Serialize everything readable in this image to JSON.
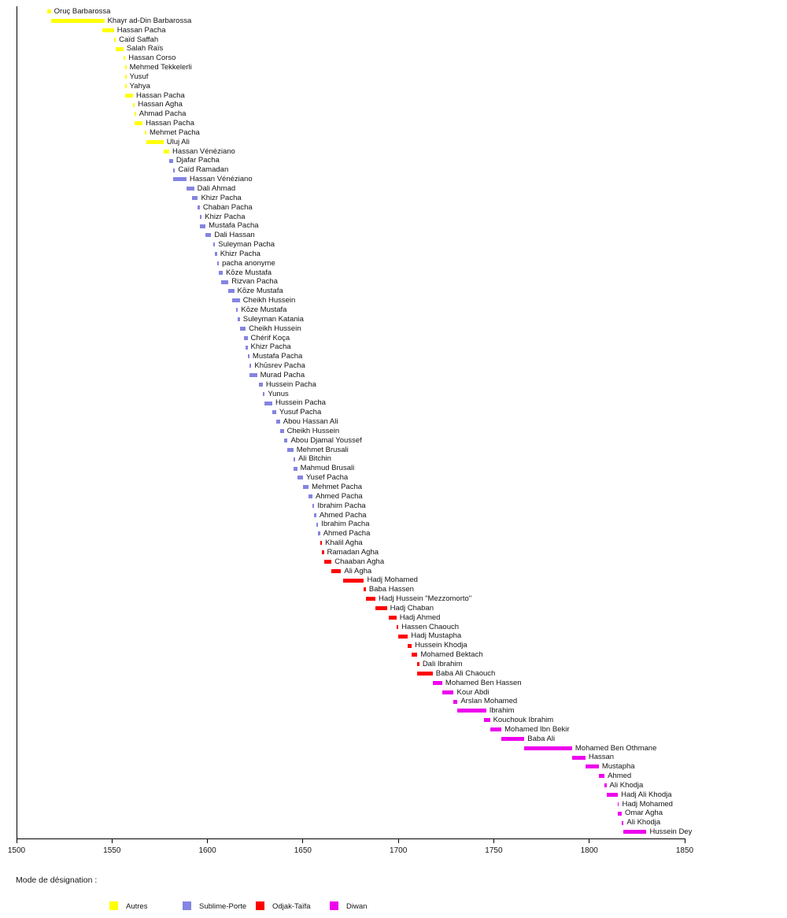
{
  "chart_data": {
    "type": "bar",
    "variant": "horizontal-timeline",
    "title": "",
    "xlabel": "",
    "ylabel": "",
    "grid": false,
    "x_axis": {
      "min": 1500,
      "max": 1850,
      "tick_interval": 50,
      "ticks": [
        1500,
        1550,
        1600,
        1650,
        1700,
        1750,
        1800,
        1850
      ]
    },
    "legend": {
      "title": "Mode de désignation :",
      "position": "bottom",
      "entries": [
        {
          "label": "Autres",
          "color": "#ffff00"
        },
        {
          "label": "Sublime-Porte",
          "color": "#8484e2"
        },
        {
          "label": "Odjak-Taïfa",
          "color": "#ff0000"
        },
        {
          "label": "Diwan",
          "color": "#ee00ee"
        }
      ]
    },
    "bars": [
      {
        "name": "Oruç Barbarossa",
        "start": 1516,
        "end": 1518,
        "group": "Autres"
      },
      {
        "name": "Khayr ad-Din Barbarossa",
        "start": 1518,
        "end": 1546,
        "group": "Autres"
      },
      {
        "name": "Hassan Pacha",
        "start": 1545,
        "end": 1551,
        "group": "Autres"
      },
      {
        "name": "Caïd Saffah",
        "start": 1551,
        "end": 1552,
        "group": "Autres"
      },
      {
        "name": "Salah Raïs",
        "start": 1552,
        "end": 1556,
        "group": "Autres"
      },
      {
        "name": "Hassan Corso",
        "start": 1556,
        "end": 1557,
        "group": "Autres"
      },
      {
        "name": "Mehmed Tekkelerli",
        "start": 1557,
        "end": 1557,
        "group": "Autres"
      },
      {
        "name": "Yusuf",
        "start": 1557,
        "end": 1557,
        "group": "Autres"
      },
      {
        "name": "Yahya",
        "start": 1557,
        "end": 1557,
        "group": "Autres"
      },
      {
        "name": "Hassan Pacha",
        "start": 1557,
        "end": 1561,
        "group": "Autres"
      },
      {
        "name": "Hassan Agha",
        "start": 1561,
        "end": 1562,
        "group": "Autres"
      },
      {
        "name": "Ahmad Pacha",
        "start": 1562,
        "end": 1562,
        "group": "Autres"
      },
      {
        "name": "Hassan Pacha",
        "start": 1562,
        "end": 1566,
        "group": "Autres"
      },
      {
        "name": "Mehmet Pacha",
        "start": 1567,
        "end": 1568,
        "group": "Autres"
      },
      {
        "name": "Uluj Ali",
        "start": 1568,
        "end": 1577,
        "group": "Autres"
      },
      {
        "name": "Hassan Vénéziano",
        "start": 1577,
        "end": 1580,
        "group": "Autres"
      },
      {
        "name": "Djafar Pacha",
        "start": 1580,
        "end": 1582,
        "group": "Sublime-Porte"
      },
      {
        "name": "Caïd Ramadan",
        "start": 1582,
        "end": 1583,
        "group": "Sublime-Porte"
      },
      {
        "name": "Hassan Vénéziano",
        "start": 1582,
        "end": 1589,
        "group": "Sublime-Porte"
      },
      {
        "name": "Dali Ahmad",
        "start": 1589,
        "end": 1593,
        "group": "Sublime-Porte"
      },
      {
        "name": "Khizr Pacha",
        "start": 1592,
        "end": 1595,
        "group": "Sublime-Porte"
      },
      {
        "name": "Chaban Pacha",
        "start": 1595,
        "end": 1596,
        "group": "Sublime-Porte"
      },
      {
        "name": "Khizr Pacha",
        "start": 1596,
        "end": 1597,
        "group": "Sublime-Porte"
      },
      {
        "name": "Mustafa Pacha",
        "start": 1596,
        "end": 1599,
        "group": "Sublime-Porte"
      },
      {
        "name": "Dali Hassan",
        "start": 1599,
        "end": 1602,
        "group": "Sublime-Porte"
      },
      {
        "name": "Suleyman Pacha",
        "start": 1603,
        "end": 1604,
        "group": "Sublime-Porte"
      },
      {
        "name": "Khizr Pacha",
        "start": 1604,
        "end": 1605,
        "group": "Sublime-Porte"
      },
      {
        "name": "pacha anonyme",
        "start": 1605,
        "end": 1606,
        "group": "Sublime-Porte"
      },
      {
        "name": "Kōze Mustafa",
        "start": 1606,
        "end": 1608,
        "group": "Sublime-Porte"
      },
      {
        "name": "Rizvan Pacha",
        "start": 1607,
        "end": 1611,
        "group": "Sublime-Porte"
      },
      {
        "name": "Kōze Mustafa",
        "start": 1611,
        "end": 1614,
        "group": "Sublime-Porte"
      },
      {
        "name": "Cheikh Hussein",
        "start": 1613,
        "end": 1617,
        "group": "Sublime-Porte"
      },
      {
        "name": "Kōze Mustafa",
        "start": 1615,
        "end": 1616,
        "group": "Sublime-Porte"
      },
      {
        "name": "Suleyman Katania",
        "start": 1616,
        "end": 1617,
        "group": "Sublime-Porte"
      },
      {
        "name": "Cheikh Hussein",
        "start": 1617,
        "end": 1620,
        "group": "Sublime-Porte"
      },
      {
        "name": "Chérif Koça",
        "start": 1619,
        "end": 1621,
        "group": "Sublime-Porte"
      },
      {
        "name": "Khizr Pacha",
        "start": 1620,
        "end": 1621,
        "group": "Sublime-Porte"
      },
      {
        "name": "Mustafa Pacha",
        "start": 1621,
        "end": 1622,
        "group": "Sublime-Porte"
      },
      {
        "name": "Khūsrev Pacha",
        "start": 1622,
        "end": 1623,
        "group": "Sublime-Porte"
      },
      {
        "name": "Murad Pacha",
        "start": 1622,
        "end": 1626,
        "group": "Sublime-Porte"
      },
      {
        "name": "Hussein Pacha",
        "start": 1627,
        "end": 1629,
        "group": "Sublime-Porte"
      },
      {
        "name": "Yunus",
        "start": 1629,
        "end": 1630,
        "group": "Sublime-Porte"
      },
      {
        "name": "Hussein Pacha",
        "start": 1630,
        "end": 1634,
        "group": "Sublime-Porte"
      },
      {
        "name": "Yusuf Pacha",
        "start": 1634,
        "end": 1636,
        "group": "Sublime-Porte"
      },
      {
        "name": "Abou Hassan Ali",
        "start": 1636,
        "end": 1638,
        "group": "Sublime-Porte"
      },
      {
        "name": "Cheikh Hussein",
        "start": 1638,
        "end": 1640,
        "group": "Sublime-Porte"
      },
      {
        "name": "Abou Djamal Youssef",
        "start": 1640,
        "end": 1642,
        "group": "Sublime-Porte"
      },
      {
        "name": "Mehmet Brusali",
        "start": 1642,
        "end": 1645,
        "group": "Sublime-Porte"
      },
      {
        "name": "Ali Bitchin",
        "start": 1645,
        "end": 1646,
        "group": "Sublime-Porte"
      },
      {
        "name": "Mahmud Brusali",
        "start": 1645,
        "end": 1647,
        "group": "Sublime-Porte"
      },
      {
        "name": "Yusef Pacha",
        "start": 1647,
        "end": 1650,
        "group": "Sublime-Porte"
      },
      {
        "name": "Mehmet Pacha",
        "start": 1650,
        "end": 1653,
        "group": "Sublime-Porte"
      },
      {
        "name": "Ahmed Pacha",
        "start": 1653,
        "end": 1655,
        "group": "Sublime-Porte"
      },
      {
        "name": "Ibrahim Pacha",
        "start": 1655,
        "end": 1656,
        "group": "Sublime-Porte"
      },
      {
        "name": "Ahmed Pacha",
        "start": 1656,
        "end": 1657,
        "group": "Sublime-Porte"
      },
      {
        "name": "Ibrahim Pacha",
        "start": 1657,
        "end": 1658,
        "group": "Sublime-Porte"
      },
      {
        "name": "Ahmed Pacha",
        "start": 1658,
        "end": 1659,
        "group": "Sublime-Porte"
      },
      {
        "name": "Khalil Agha",
        "start": 1659,
        "end": 1660,
        "group": "Odjak-Taïfa"
      },
      {
        "name": "Ramadan Agha",
        "start": 1660,
        "end": 1661,
        "group": "Odjak-Taïfa"
      },
      {
        "name": "Chaaban Agha",
        "start": 1661,
        "end": 1665,
        "group": "Odjak-Taïfa"
      },
      {
        "name": "Ali Agha",
        "start": 1665,
        "end": 1670,
        "group": "Odjak-Taïfa"
      },
      {
        "name": "Hadj Mohamed",
        "start": 1671,
        "end": 1682,
        "group": "Odjak-Taïfa"
      },
      {
        "name": "Baba Hassen",
        "start": 1682,
        "end": 1683,
        "group": "Odjak-Taïfa"
      },
      {
        "name": "Hadj Hussein \"Mezzomorto\"",
        "start": 1683,
        "end": 1688,
        "group": "Odjak-Taïfa"
      },
      {
        "name": "Hadj Chaban",
        "start": 1688,
        "end": 1694,
        "group": "Odjak-Taïfa"
      },
      {
        "name": "Hadj Ahmed",
        "start": 1695,
        "end": 1699,
        "group": "Odjak-Taïfa"
      },
      {
        "name": "Hassen Chaouch",
        "start": 1699,
        "end": 1700,
        "group": "Odjak-Taïfa"
      },
      {
        "name": "Hadj Mustapha",
        "start": 1700,
        "end": 1705,
        "group": "Odjak-Taïfa"
      },
      {
        "name": "Hussein Khodja",
        "start": 1705,
        "end": 1707,
        "group": "Odjak-Taïfa"
      },
      {
        "name": "Mohamed Bektach",
        "start": 1707,
        "end": 1710,
        "group": "Odjak-Taïfa"
      },
      {
        "name": "Dali Ibrahim",
        "start": 1710,
        "end": 1711,
        "group": "Odjak-Taïfa"
      },
      {
        "name": "Baba Ali Chaouch",
        "start": 1710,
        "end": 1718,
        "group": "Odjak-Taïfa"
      },
      {
        "name": "Mohamed Ben Hassen",
        "start": 1718,
        "end": 1723,
        "group": "Diwan"
      },
      {
        "name": "Kour Abdi",
        "start": 1723,
        "end": 1729,
        "group": "Diwan"
      },
      {
        "name": "Arslan Mohamed",
        "start": 1729,
        "end": 1731,
        "group": "Diwan"
      },
      {
        "name": "Ibrahim",
        "start": 1731,
        "end": 1746,
        "group": "Diwan"
      },
      {
        "name": "Kouchouk Ibrahim",
        "start": 1745,
        "end": 1748,
        "group": "Diwan"
      },
      {
        "name": "Mohamed Ibn Bekir",
        "start": 1748,
        "end": 1754,
        "group": "Diwan"
      },
      {
        "name": "Baba Ali",
        "start": 1754,
        "end": 1766,
        "group": "Diwan"
      },
      {
        "name": "Mohamed Ben Othmane",
        "start": 1766,
        "end": 1791,
        "group": "Diwan"
      },
      {
        "name": "Hassan",
        "start": 1791,
        "end": 1798,
        "group": "Diwan"
      },
      {
        "name": "Mustapha",
        "start": 1798,
        "end": 1805,
        "group": "Diwan"
      },
      {
        "name": "Ahmed",
        "start": 1805,
        "end": 1808,
        "group": "Diwan"
      },
      {
        "name": "Ali Khodja",
        "start": 1808,
        "end": 1809,
        "group": "Diwan"
      },
      {
        "name": "Hadj Ali Khodja",
        "start": 1809,
        "end": 1815,
        "group": "Diwan"
      },
      {
        "name": "Hadj Mohamed",
        "start": 1815,
        "end": 1815,
        "group": "Diwan"
      },
      {
        "name": "Omar Agha",
        "start": 1815,
        "end": 1817,
        "group": "Diwan"
      },
      {
        "name": "Ali Khodja",
        "start": 1817,
        "end": 1818,
        "group": "Diwan"
      },
      {
        "name": "Hussein Dey",
        "start": 1818,
        "end": 1830,
        "group": "Diwan"
      }
    ]
  }
}
